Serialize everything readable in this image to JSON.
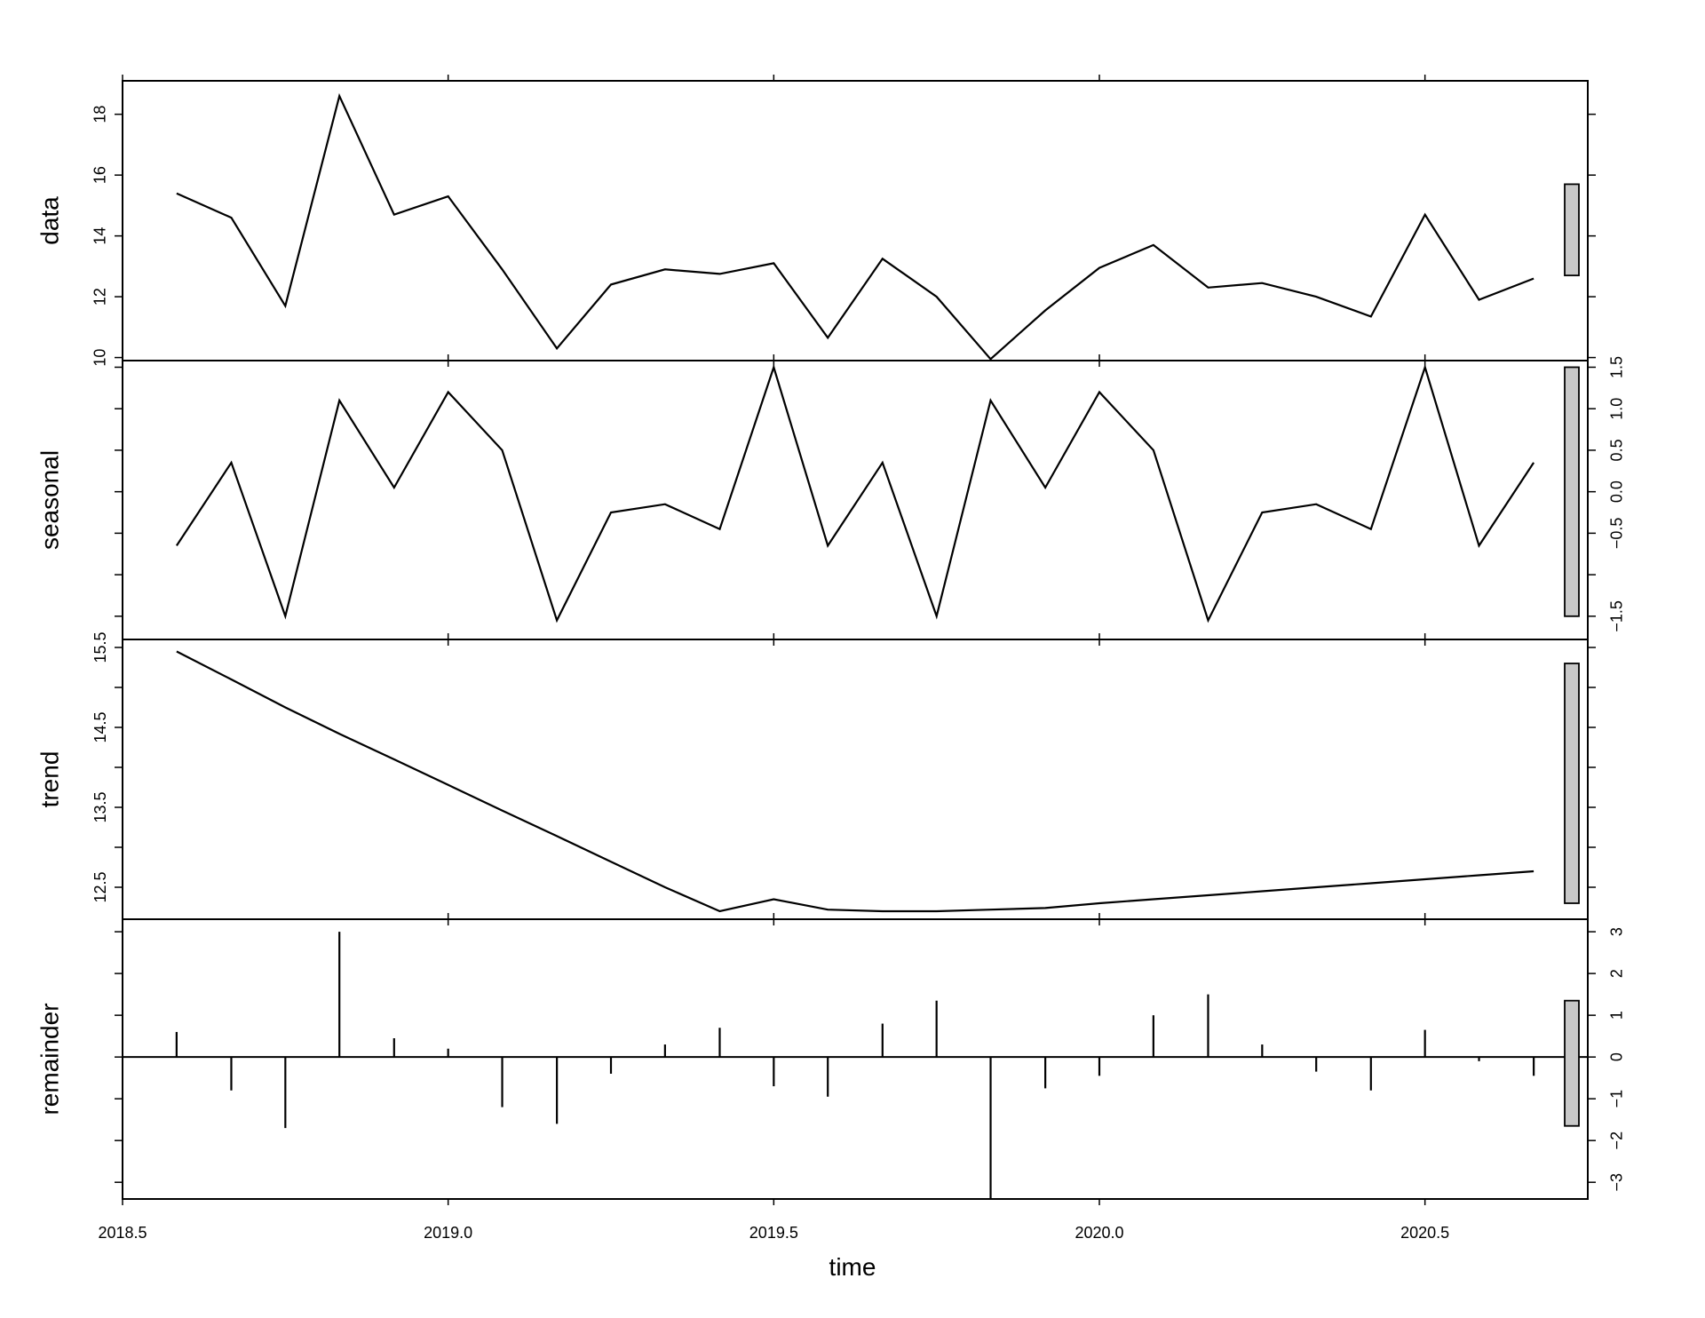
{
  "chart_data": {
    "type": "line",
    "xlabel": "time",
    "x_range": [
      2018.5,
      2020.75
    ],
    "x_ticks": [
      "2018.5",
      "2019.0",
      "2019.5",
      "2020.0",
      "2020.5"
    ],
    "x_tick_values": [
      2018.5,
      2019.0,
      2019.5,
      2020.0,
      2020.5
    ],
    "time": [
      2018.583,
      2018.667,
      2018.75,
      2018.833,
      2018.917,
      2019.0,
      2019.083,
      2019.167,
      2019.25,
      2019.333,
      2019.417,
      2019.5,
      2019.583,
      2019.667,
      2019.75,
      2019.833,
      2019.917,
      2020.0,
      2020.083,
      2020.167,
      2020.25,
      2020.333,
      2020.417,
      2020.5,
      2020.583,
      2020.667
    ],
    "panels": [
      {
        "label": "data",
        "plot_type": "line",
        "axis_side": "left",
        "ylim": [
          9.9,
          19.1
        ],
        "tick_labels": [
          "10",
          "12",
          "14",
          "16",
          "18"
        ],
        "tick_values": [
          10,
          12,
          14,
          16,
          18
        ],
        "values": [
          15.4,
          14.6,
          11.7,
          18.6,
          14.7,
          15.3,
          12.9,
          10.3,
          12.4,
          12.9,
          12.75,
          13.1,
          10.65,
          13.25,
          12.0,
          9.95,
          11.55,
          12.95,
          13.7,
          12.3,
          12.45,
          12.0,
          11.35,
          14.7,
          11.9,
          12.6
        ],
        "scale_bar": [
          12.7,
          15.7
        ]
      },
      {
        "label": "seasonal",
        "plot_type": "line",
        "axis_side": "right",
        "ylim": [
          -1.78,
          1.58
        ],
        "tick_labels": [
          "−1.5",
          "−0.5",
          "0.0",
          "0.5",
          "1.0",
          "1.5"
        ],
        "tick_values": [
          -1.5,
          -0.5,
          0.0,
          0.5,
          1.0,
          1.5
        ],
        "minor_tick_values": [
          -1.0
        ],
        "values": [
          -0.65,
          0.35,
          -1.5,
          1.1,
          0.05,
          1.2,
          0.5,
          -1.55,
          -0.25,
          -0.15,
          -0.45,
          1.5,
          -0.65,
          0.35,
          -1.5,
          1.1,
          0.05,
          1.2,
          0.5,
          -1.55,
          -0.25,
          -0.15,
          -0.45,
          1.5,
          -0.65,
          0.35
        ],
        "scale_bar": [
          -1.5,
          1.5
        ]
      },
      {
        "label": "trend",
        "plot_type": "line",
        "axis_side": "left",
        "ylim": [
          12.1,
          15.6
        ],
        "tick_labels": [
          "12.5",
          "13.5",
          "14.5",
          "15.5"
        ],
        "tick_values": [
          12.5,
          13.5,
          14.5,
          15.5
        ],
        "minor_tick_values": [
          13.0,
          14.0,
          15.0
        ],
        "values": [
          15.45,
          15.1,
          14.75,
          14.42,
          14.1,
          13.78,
          13.46,
          13.14,
          12.82,
          12.5,
          12.2,
          12.35,
          12.22,
          12.2,
          12.2,
          12.22,
          12.24,
          12.3,
          12.35,
          12.4,
          12.45,
          12.5,
          12.55,
          12.6,
          12.65,
          12.7
        ],
        "scale_bar": [
          12.3,
          15.3
        ]
      },
      {
        "label": "remainder",
        "plot_type": "spikes",
        "axis_side": "right",
        "ylim": [
          -3.4,
          3.3
        ],
        "tick_labels": [
          "−3",
          "−2",
          "−1",
          "0",
          "1",
          "2",
          "3"
        ],
        "tick_values": [
          -3,
          -2,
          -1,
          0,
          1,
          2,
          3
        ],
        "baseline": 0,
        "values": [
          0.6,
          -0.8,
          -1.7,
          3.0,
          0.45,
          0.2,
          -1.2,
          -1.6,
          -0.4,
          0.3,
          0.7,
          -0.7,
          -0.95,
          0.8,
          1.35,
          -3.4,
          -0.75,
          -0.45,
          1.0,
          1.5,
          0.3,
          -0.35,
          -0.8,
          0.65,
          -0.1,
          -0.45
        ],
        "scale_bar": [
          -1.65,
          1.35
        ]
      }
    ]
  }
}
